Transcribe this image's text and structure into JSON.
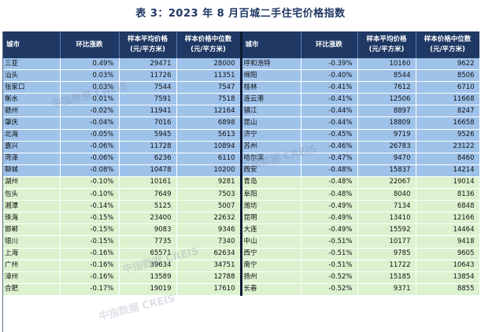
{
  "title": "表 3：2023 年 8 月百城二手住宅价格指数",
  "headers": {
    "city": "城市",
    "mom": "环比涨跌",
    "avg_line1": "样本平均价格",
    "avg_line2": "(元/平方米)",
    "median_line1": "样本价格中位数",
    "median_line2": "(元/平方米)"
  },
  "watermark": "中指数据 CREIS",
  "rows": [
    {
      "left": {
        "city": "三亚",
        "mom": "0.49%",
        "avg": "29471",
        "median": "28000"
      },
      "right": {
        "city": "呼和浩特",
        "mom": "-0.39%",
        "avg": "10160",
        "median": "9622"
      }
    },
    {
      "left": {
        "city": "汕头",
        "mom": "0.03%",
        "avg": "11726",
        "median": "11351"
      },
      "right": {
        "city": "绵阳",
        "mom": "-0.40%",
        "avg": "8544",
        "median": "8506"
      }
    },
    {
      "left": {
        "city": "张家口",
        "mom": "0.03%",
        "avg": "7544",
        "median": "7547"
      },
      "right": {
        "city": "桂林",
        "mom": "-0.41%",
        "avg": "7612",
        "median": "6710"
      }
    },
    {
      "left": {
        "city": "衡水",
        "mom": "0.01%",
        "avg": "7591",
        "median": "7518"
      },
      "right": {
        "city": "连云港",
        "mom": "-0.41%",
        "avg": "12506",
        "median": "11668"
      }
    },
    {
      "left": {
        "city": "赣州",
        "mom": "-0.02%",
        "avg": "11941",
        "median": "12164"
      },
      "right": {
        "city": "镇江",
        "mom": "-0.44%",
        "avg": "8897",
        "median": "8247"
      }
    },
    {
      "left": {
        "city": "肇庆",
        "mom": "-0.04%",
        "avg": "7016",
        "median": "6898"
      },
      "right": {
        "city": "昆山",
        "mom": "-0.44%",
        "avg": "18809",
        "median": "16658"
      }
    },
    {
      "left": {
        "city": "北海",
        "mom": "-0.05%",
        "avg": "5945",
        "median": "5613"
      },
      "right": {
        "city": "济宁",
        "mom": "-0.45%",
        "avg": "9719",
        "median": "9526"
      }
    },
    {
      "left": {
        "city": "嘉兴",
        "mom": "-0.06%",
        "avg": "11728",
        "median": "10894"
      },
      "right": {
        "city": "苏州",
        "mom": "-0.46%",
        "avg": "26783",
        "median": "23122"
      }
    },
    {
      "left": {
        "city": "菏泽",
        "mom": "-0.06%",
        "avg": "6236",
        "median": "6110"
      },
      "right": {
        "city": "哈尔滨",
        "mom": "-0.47%",
        "avg": "9470",
        "median": "8460"
      }
    },
    {
      "left": {
        "city": "聊城",
        "mom": "-0.08%",
        "avg": "10478",
        "median": "10200"
      },
      "right": {
        "city": "西安",
        "mom": "-0.48%",
        "avg": "15837",
        "median": "14214"
      }
    },
    {
      "left": {
        "city": "湖州",
        "mom": "-0.10%",
        "avg": "10161",
        "median": "9281"
      },
      "right": {
        "city": "青岛",
        "mom": "-0.48%",
        "avg": "22067",
        "median": "19014"
      }
    },
    {
      "left": {
        "city": "包头",
        "mom": "-0.10%",
        "avg": "7649",
        "median": "7503"
      },
      "right": {
        "city": "阜阳",
        "mom": "-0.48%",
        "avg": "8040",
        "median": "8136"
      }
    },
    {
      "left": {
        "city": "湘潭",
        "mom": "-0.14%",
        "avg": "5125",
        "median": "5007"
      },
      "right": {
        "city": "潍坊",
        "mom": "-0.49%",
        "avg": "7134",
        "median": "6848"
      }
    },
    {
      "left": {
        "city": "珠海",
        "mom": "-0.15%",
        "avg": "23400",
        "median": "22632"
      },
      "right": {
        "city": "昆明",
        "mom": "-0.49%",
        "avg": "13410",
        "median": "12166"
      }
    },
    {
      "left": {
        "city": "邯郸",
        "mom": "-0.15%",
        "avg": "9083",
        "median": "9346"
      },
      "right": {
        "city": "大连",
        "mom": "-0.49%",
        "avg": "15592",
        "median": "14464"
      }
    },
    {
      "left": {
        "city": "银川",
        "mom": "-0.15%",
        "avg": "7735",
        "median": "7340"
      },
      "right": {
        "city": "中山",
        "mom": "-0.51%",
        "avg": "10177",
        "median": "9418"
      }
    },
    {
      "left": {
        "city": "上海",
        "mom": "-0.16%",
        "avg": "65571",
        "median": "62634"
      },
      "right": {
        "city": "西宁",
        "mom": "-0.51%",
        "avg": "9785",
        "median": "9605"
      }
    },
    {
      "left": {
        "city": "广州",
        "mom": "-0.16%",
        "avg": "39634",
        "median": "34751"
      },
      "right": {
        "city": "南宁",
        "mom": "-0.51%",
        "avg": "11722",
        "median": "10643"
      }
    },
    {
      "left": {
        "city": "漳州",
        "mom": "-0.16%",
        "avg": "13589",
        "median": "12788"
      },
      "right": {
        "city": "扬州",
        "mom": "-0.52%",
        "avg": "15185",
        "median": "13854"
      }
    },
    {
      "left": {
        "city": "合肥",
        "mom": "-0.17%",
        "avg": "19019",
        "median": "17610"
      },
      "right": {
        "city": "长春",
        "mom": "-0.52%",
        "avg": "9371",
        "median": "8855"
      }
    }
  ],
  "colors": {
    "header_bg": "#1f3864",
    "row_blue": "#9ec2ea",
    "row_green": "#dcf2cf",
    "title": "#1f3864"
  }
}
